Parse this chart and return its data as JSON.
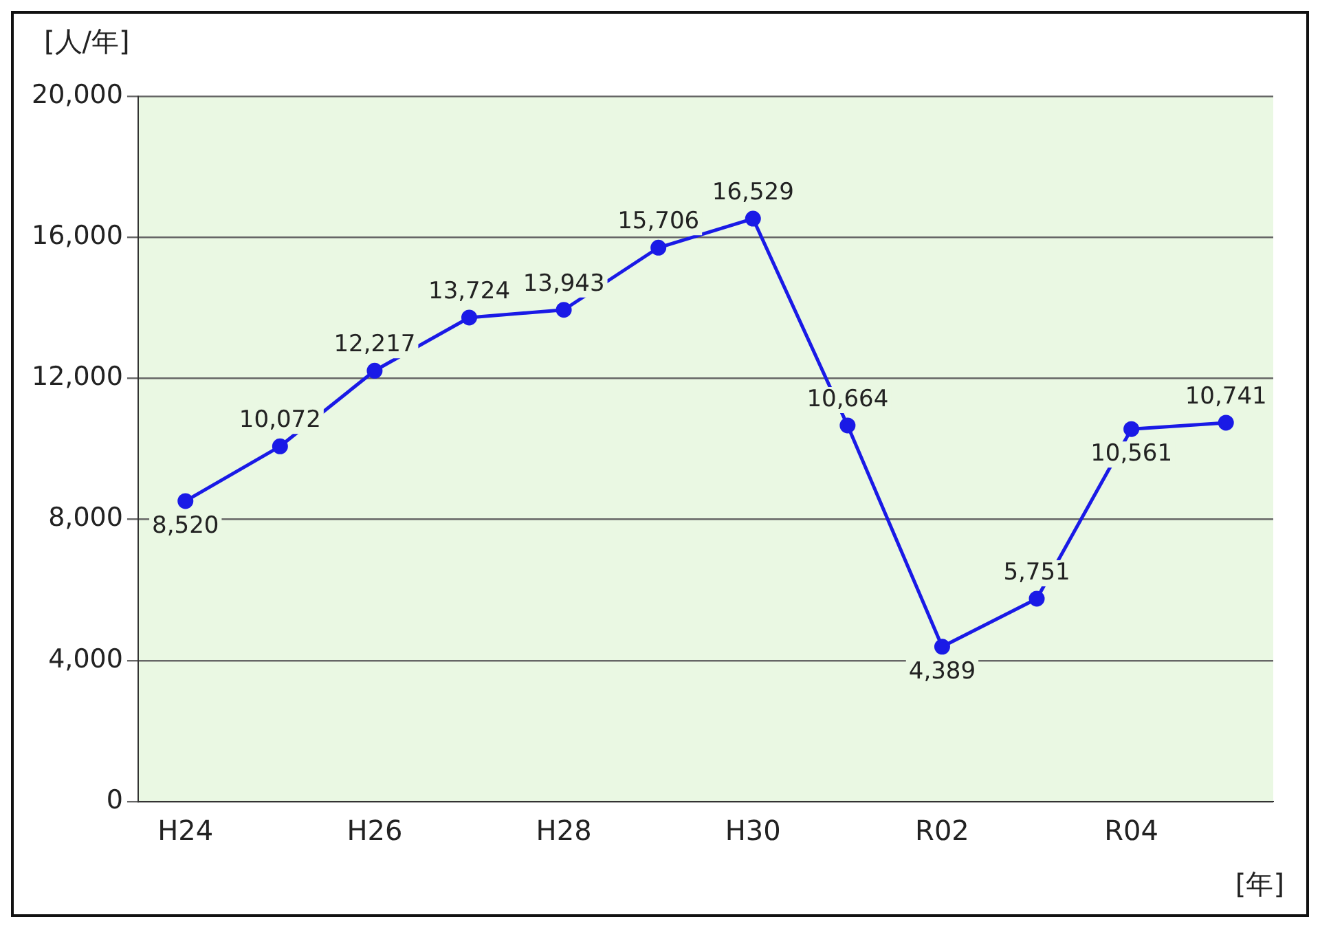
{
  "chart_data": {
    "type": "line",
    "xlabel": "[年]",
    "ylabel": "[人/年]",
    "categories": [
      "H24",
      null,
      "H26",
      null,
      "H28",
      null,
      "H30",
      null,
      "R02",
      null,
      "R04",
      null
    ],
    "series": [
      {
        "color": "#1a1ae6",
        "values": [
          8520,
          10072,
          12217,
          13724,
          13943,
          15706,
          16529,
          10664,
          4389,
          5751,
          10561,
          10741
        ],
        "value_labels": [
          "8,520",
          "10,072",
          "12,217",
          "13,724",
          "13,943",
          "15,706",
          "16,529",
          "10,664",
          "4,389",
          "5,751",
          "10,561",
          "10,741"
        ]
      }
    ],
    "ylim": [
      0,
      20000
    ],
    "yticks": [
      {
        "value": 0,
        "label": "0"
      },
      {
        "value": 4000,
        "label": "4,000"
      },
      {
        "value": 8000,
        "label": "8,000"
      },
      {
        "value": 12000,
        "label": "12,000"
      },
      {
        "value": 16000,
        "label": "16,000"
      },
      {
        "value": 20000,
        "label": "20,000"
      }
    ],
    "grid": "y",
    "marker": "circle",
    "line_style": "solid",
    "legend": false
  }
}
